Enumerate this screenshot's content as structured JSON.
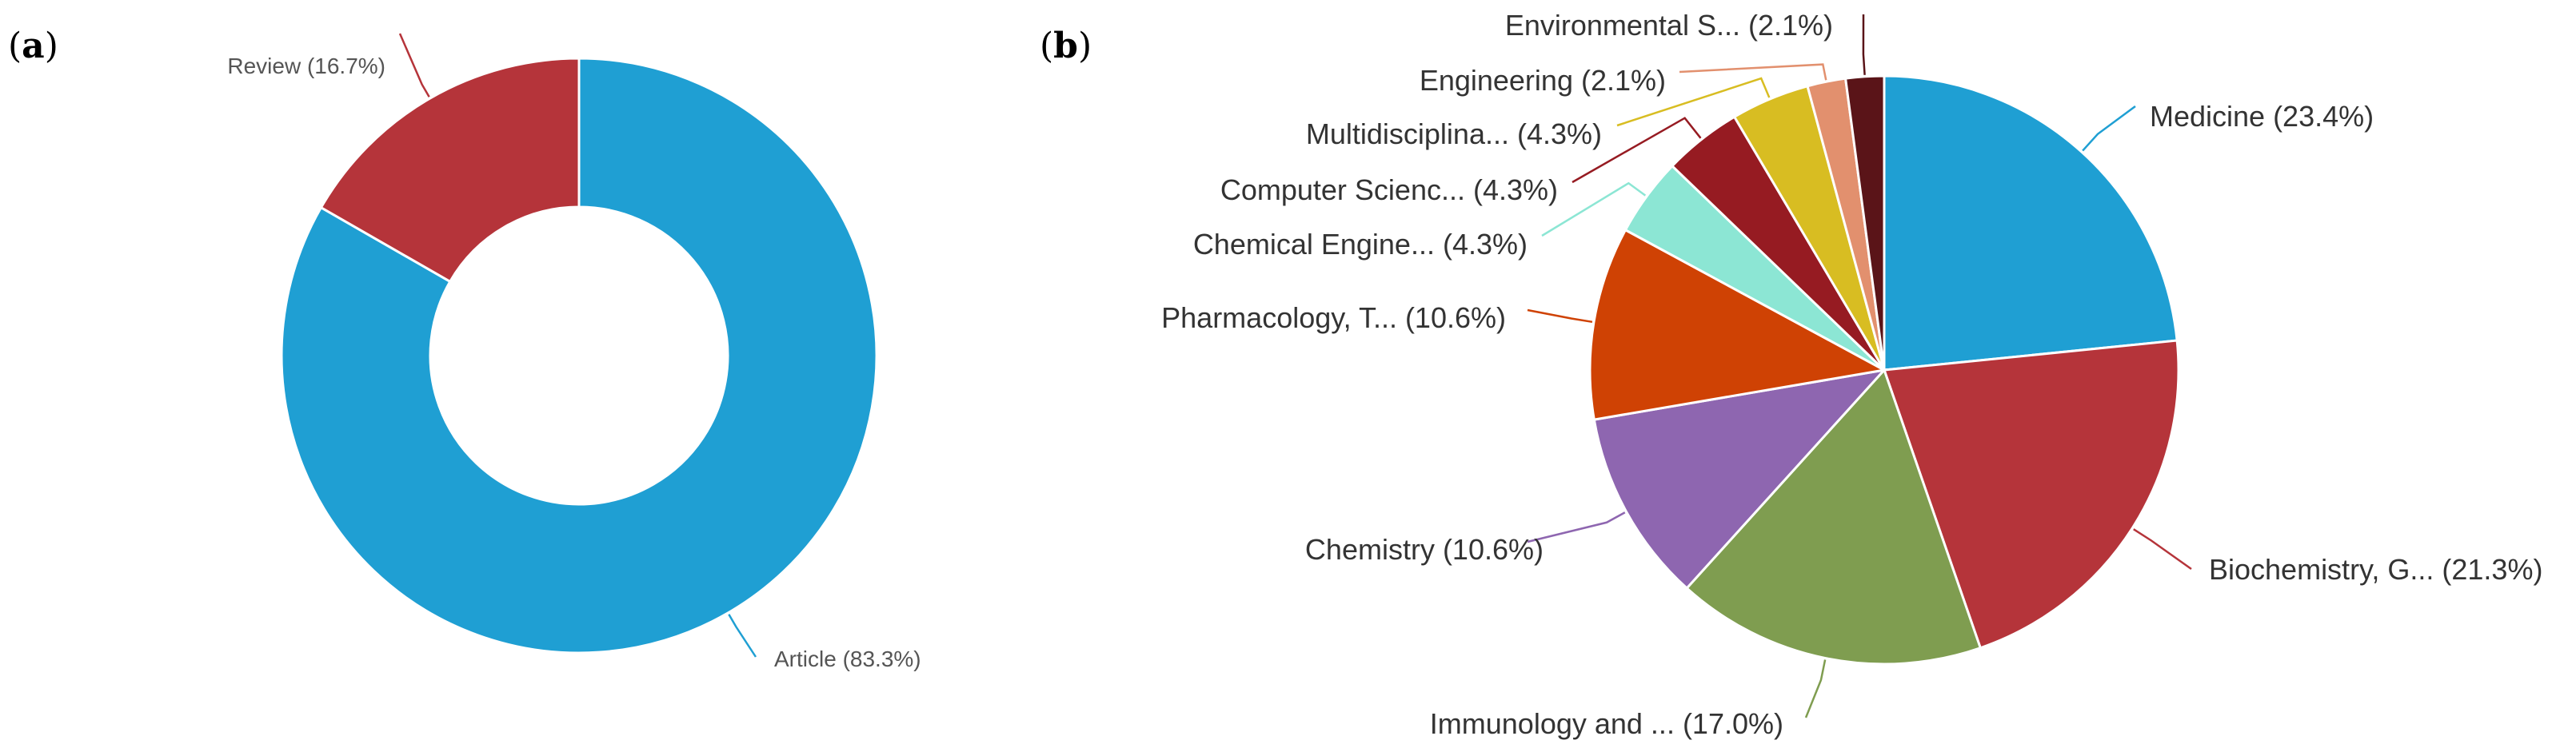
{
  "panels": {
    "a": {
      "label": "a"
    },
    "b": {
      "label": "b"
    }
  },
  "chart_data": [
    {
      "type": "pie",
      "variant": "donut",
      "panel": "a",
      "title": "",
      "slices": [
        {
          "name": "Article",
          "value": 83.3,
          "label": "Article (83.3%)",
          "color": "#1f9fd3"
        },
        {
          "name": "Review",
          "value": 16.7,
          "label": "Review (16.7%)",
          "color": "#b5343a"
        }
      ]
    },
    {
      "type": "pie",
      "panel": "b",
      "title": "",
      "slices": [
        {
          "name": "Medicine",
          "value": 23.4,
          "label": "Medicine (23.4%)",
          "color": "#1f9fd3"
        },
        {
          "name": "Biochemistry, G...",
          "value": 21.3,
          "label": "Biochemistry, G... (21.3%)",
          "color": "#b5343a"
        },
        {
          "name": "Immunology and ...",
          "value": 17.0,
          "label": "Immunology and ... (17.0%)",
          "color": "#7f9d50"
        },
        {
          "name": "Chemistry",
          "value": 10.6,
          "label": "Chemistry (10.6%)",
          "color": "#8e66b0"
        },
        {
          "name": "Pharmacology, T...",
          "value": 10.6,
          "label": "Pharmacology, T... (10.6%)",
          "color": "#cf4204"
        },
        {
          "name": "Chemical Engine...",
          "value": 4.3,
          "label": "Chemical Engine... (4.3%)",
          "color": "#8ce6d4"
        },
        {
          "name": "Computer Scienc...",
          "value": 4.3,
          "label": "Computer Scienc... (4.3%)",
          "color": "#961b22"
        },
        {
          "name": "Multidisciplina...",
          "value": 4.3,
          "label": "Multidisciplina... (4.3%)",
          "color": "#d8bd22"
        },
        {
          "name": "Engineering",
          "value": 2.1,
          "label": "Engineering (2.1%)",
          "color": "#e2906e"
        },
        {
          "name": "Environmental S...",
          "value": 2.1,
          "label": "Environmental S... (2.1%)",
          "color": "#5a1418"
        }
      ]
    }
  ]
}
